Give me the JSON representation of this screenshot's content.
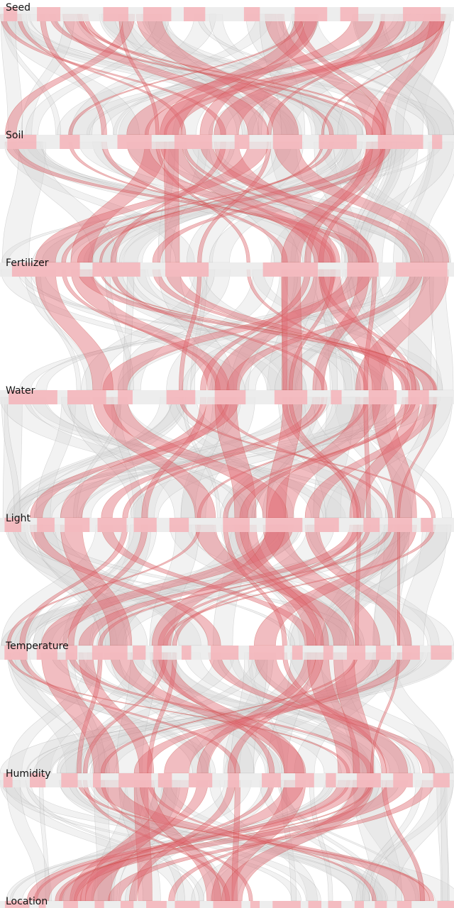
{
  "chart_data": {
    "type": "parallel-sets",
    "dimensions": [
      {
        "name": "Seed",
        "categories": 9
      },
      {
        "name": "Soil",
        "categories": 9
      },
      {
        "name": "Fertilizer",
        "categories": 6
      },
      {
        "name": "Water",
        "categories": 9
      },
      {
        "name": "Light",
        "categories": 12
      },
      {
        "name": "Temperature",
        "categories": 15
      },
      {
        "name": "Humidity",
        "categories": 14
      },
      {
        "name": "Location",
        "categories": 16
      }
    ],
    "highlight_color": "#e06c75",
    "base_color": "#d9d9d9",
    "category_bar_color": "#f4b6bb",
    "ribbon_count": 22,
    "random_seed": 7
  }
}
